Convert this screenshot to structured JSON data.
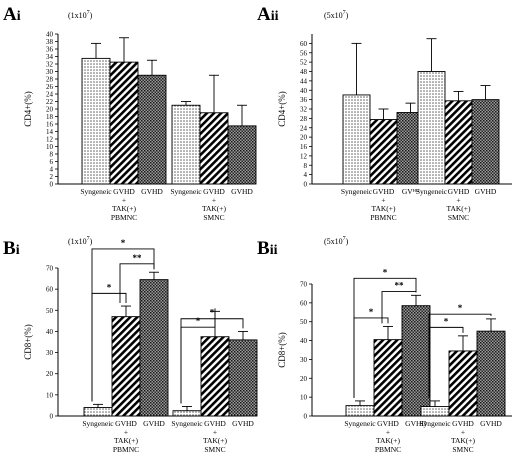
{
  "chart_data": [
    {
      "panel": "Ai",
      "type": "bar",
      "dose_label": "(1x10",
      "dose_exp": "7",
      "dose_close": ")",
      "ylabel": "CD4+(%)",
      "ylim": [
        0,
        40
      ],
      "yticks": [
        0,
        2,
        4,
        6,
        8,
        10,
        12,
        14,
        16,
        18,
        20,
        22,
        24,
        26,
        28,
        30,
        32,
        34,
        36,
        38,
        40
      ],
      "groups": [
        {
          "name": "PBMNC",
          "bars": [
            {
              "label": [
                "Syngeneic"
              ],
              "value": 33.5,
              "error": 4,
              "pattern": "dots"
            },
            {
              "label": [
                "GVHD",
                "+",
                "TAK(+)"
              ],
              "value": 32.5,
              "error": 6.5,
              "pattern": "stripes"
            },
            {
              "label": [
                "GVHD"
              ],
              "value": 29,
              "error": 4,
              "pattern": "cross"
            }
          ]
        },
        {
          "name": "SMNC",
          "bars": [
            {
              "label": [
                "Syngeneic"
              ],
              "value": 21,
              "error": 1,
              "pattern": "dots"
            },
            {
              "label": [
                "GVHD",
                "+",
                "TAK(+)"
              ],
              "value": 19,
              "error": 10,
              "pattern": "stripes"
            },
            {
              "label": [
                "GVHD"
              ],
              "value": 15.5,
              "error": 5.5,
              "pattern": "cross"
            }
          ]
        }
      ],
      "significance": []
    },
    {
      "panel": "Aii",
      "type": "bar",
      "dose_label": "(5x10",
      "dose_exp": "7",
      "dose_close": ")",
      "ylabel": "CD4+(%)",
      "ylim": [
        0,
        64
      ],
      "yticks": [
        0,
        4,
        8,
        12,
        16,
        20,
        24,
        28,
        32,
        36,
        40,
        44,
        48,
        52,
        56,
        60
      ],
      "groups": [
        {
          "name": "PBMNC",
          "bars": [
            {
              "label": [
                "Syngeneic"
              ],
              "value": 38,
              "error": 22,
              "pattern": "dots"
            },
            {
              "label": [
                "GVHD",
                "+",
                "TAK(+)"
              ],
              "value": 27.5,
              "error": 4.5,
              "pattern": "stripes"
            },
            {
              "label": [
                "GVᴴᴰ"
              ],
              "value": 30.5,
              "error": 4,
              "pattern": "cross"
            }
          ]
        },
        {
          "name": "SMNC",
          "bars": [
            {
              "label": [
                "Syngeneic"
              ],
              "value": 48,
              "error": 14,
              "pattern": "dots"
            },
            {
              "label": [
                "GVHD",
                "+",
                "TAK(+)"
              ],
              "value": 35.5,
              "error": 4,
              "pattern": "stripes"
            },
            {
              "label": [
                "GVHD"
              ],
              "value": 36,
              "error": 6,
              "pattern": "cross"
            }
          ]
        }
      ],
      "significance": []
    },
    {
      "panel": "Bi",
      "type": "bar",
      "dose_label": "(1x10",
      "dose_exp": "7",
      "dose_close": ")",
      "ylabel": "CD8+(%)",
      "ylim": [
        0,
        70
      ],
      "yticks": [
        0,
        10,
        20,
        30,
        40,
        50,
        60,
        70
      ],
      "groups": [
        {
          "name": "PBMNC",
          "bars": [
            {
              "label": [
                "Syngeneic"
              ],
              "value": 4,
              "error": 1.5,
              "pattern": "dots"
            },
            {
              "label": [
                "GVHD",
                "+",
                "TAK(+)"
              ],
              "value": 47,
              "error": 5,
              "pattern": "stripes"
            },
            {
              "label": [
                "GVHD"
              ],
              "value": 64.5,
              "error": 3.5,
              "pattern": "cross"
            }
          ]
        },
        {
          "name": "SMNC",
          "bars": [
            {
              "label": [
                "Syngeneic"
              ],
              "value": 2.5,
              "error": 2,
              "pattern": "dots"
            },
            {
              "label": [
                "GVHD",
                "+",
                "TAK(+)"
              ],
              "value": 37.5,
              "error": 12,
              "pattern": "stripes"
            },
            {
              "label": [
                "GVHD"
              ],
              "value": 36,
              "error": 4,
              "pattern": "cross"
            }
          ]
        }
      ],
      "significance": [
        {
          "group": 0,
          "from": 0,
          "to": 2,
          "level": 79,
          "mark": "*"
        },
        {
          "group": 0,
          "from": 0,
          "to": 1,
          "level": 58,
          "mark": "*"
        },
        {
          "group": 0,
          "from": 1,
          "to": 2,
          "level": 72,
          "mark": "**"
        },
        {
          "group": 1,
          "from": 0,
          "to": 2,
          "level": 46,
          "mark": "*"
        },
        {
          "group": 1,
          "from": 0,
          "to": 1,
          "level": 42,
          "mark": "*"
        }
      ]
    },
    {
      "panel": "Bii",
      "type": "bar",
      "dose_label": "(5x10",
      "dose_exp": "7",
      "dose_close": ")",
      "ylabel": "CD8+(%)",
      "ylim": [
        0,
        70
      ],
      "yticks": [
        0,
        10,
        20,
        30,
        40,
        50,
        60,
        70
      ],
      "groups": [
        {
          "name": "PBMNC",
          "bars": [
            {
              "label": [
                "Syngeneic"
              ],
              "value": 5.5,
              "error": 2.5,
              "pattern": "dots"
            },
            {
              "label": [
                "GVHD",
                "+",
                "TAK(+)"
              ],
              "value": 40.5,
              "error": 7,
              "pattern": "stripes"
            },
            {
              "label": [
                "GVHD"
              ],
              "value": 58.5,
              "error": 5.5,
              "pattern": "cross"
            }
          ]
        },
        {
          "name": "SMNC",
          "bars": [
            {
              "label": [
                "Syngeneic"
              ],
              "value": 5,
              "error": 3,
              "pattern": "dots"
            },
            {
              "label": [
                "GVHD",
                "+",
                "TAK(+)"
              ],
              "value": 34.5,
              "error": 8,
              "pattern": "stripes"
            },
            {
              "label": [
                "GVHD"
              ],
              "value": 45,
              "error": 6.5,
              "pattern": "cross"
            }
          ]
        }
      ],
      "significance": [
        {
          "group": 0,
          "from": 0,
          "to": 2,
          "level": 73,
          "mark": "*"
        },
        {
          "group": 0,
          "from": 0,
          "to": 1,
          "level": 52,
          "mark": "*"
        },
        {
          "group": 0,
          "from": 1,
          "to": 2,
          "level": 66,
          "mark": "**"
        },
        {
          "group": 1,
          "from": 0,
          "to": 2,
          "level": 54,
          "mark": "*"
        },
        {
          "group": 1,
          "from": 0,
          "to": 1,
          "level": 47,
          "mark": "*"
        }
      ]
    }
  ]
}
